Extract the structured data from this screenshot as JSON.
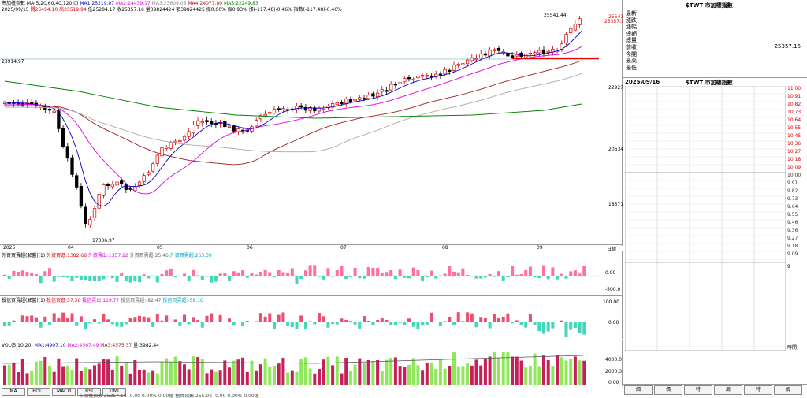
{
  "header": {
    "symbol_line": "市加權指數 MA(5,20,60,40,120,0)",
    "ma1": "MA1:25219.07",
    "ma2": "MA2:24439.17",
    "ma3": "MA3:23609.08",
    "ma4": "MA4:24077.80",
    "ma5": "MA5:22249.83",
    "date": "2025/09/15",
    "open": "開25494.10",
    "high": "高25519.94",
    "low": "低25284.17",
    "close": "收25357.16",
    "volume": "量39824424",
    "amount": "額39824425",
    "chg_a": "振0.00%",
    "chg_b": "振0.93%",
    "change": "漲(-117.48)-0.46%",
    "index_change": "指數(-117.48)-0.46%"
  },
  "price_labels": {
    "last": "25541.44",
    "current": "25357.16",
    "ref": "23914.97",
    "low_mark": "17306.97",
    "axis": [
      "25541",
      "22927",
      "20634",
      "18571"
    ]
  },
  "x_labels": [
    "2025",
    "04",
    "05",
    "06",
    "07",
    "08",
    "09"
  ],
  "indicators": {
    "foreign": {
      "name": "外資買賣超(解盤)(1)",
      "v1": "外資買進:1382.68",
      "v2": "外資賣出:1357.22",
      "v3": "外資買賣超:25.46",
      "v4": "外資買賣超:263.39",
      "ax": [
        "0.00",
        "-500.0"
      ]
    },
    "trust": {
      "name": "投信買賣超(解盤)(1)",
      "v1": "投信買進:37.30",
      "v2": "投信賣出:119.77",
      "v3": "投信買賣超:-82.47",
      "v4": "投信買賣超:-58.10",
      "ax": [
        "100.00",
        "0.00"
      ]
    },
    "vol": {
      "name": "VOL(5,10,20)",
      "v1": "MA1:4907.10",
      "v2": "MA2:4567.49",
      "v3": "MA3:4575.37",
      "v4": "量:3982.44",
      "ax": [
        "4000.0",
        "2000.0",
        "0.00"
      ]
    }
  },
  "bottom_tabs": [
    "MA",
    "BOLL",
    "MACD",
    "RSI",
    "DMI"
  ],
  "ticker_tape": "市加權指數 25357.16 -0.00 0.00% 0.00億   櫃買指數 255.02 -0.00 0.00% 0.00億",
  "day_label": "日線",
  "right_panel": {
    "title": "$TWT 市加權指數",
    "rows": [
      {
        "label": "最新",
        "value": ""
      },
      {
        "label": "漲跌",
        "value": ""
      },
      {
        "label": "漲幅",
        "value": ""
      },
      {
        "label": "總額",
        "value": ""
      },
      {
        "label": "總量",
        "value": ""
      },
      {
        "label": "前收",
        "value": "25357.16"
      },
      {
        "label": "今開",
        "value": ""
      },
      {
        "label": "最高",
        "value": ""
      },
      {
        "label": "最低",
        "value": ""
      }
    ],
    "intraday_date": "2025/09/16",
    "intraday_title": "$TWT 市加權指數",
    "axis": [
      "11.00",
      "10.91",
      "10.82",
      "10.73",
      "10.64",
      "10.55",
      "10.45",
      "10.36",
      "10.27",
      "10.18",
      "10.09",
      "10.00",
      "9.91",
      "9.82",
      "9.73",
      "9.64",
      "9.55",
      "9.46",
      "9.36",
      "9.27",
      "9.18",
      "9.09",
      "9",
      "0",
      "時間"
    ],
    "tabs": [
      "細",
      "價",
      "特",
      "周",
      "特",
      "解"
    ]
  }
}
